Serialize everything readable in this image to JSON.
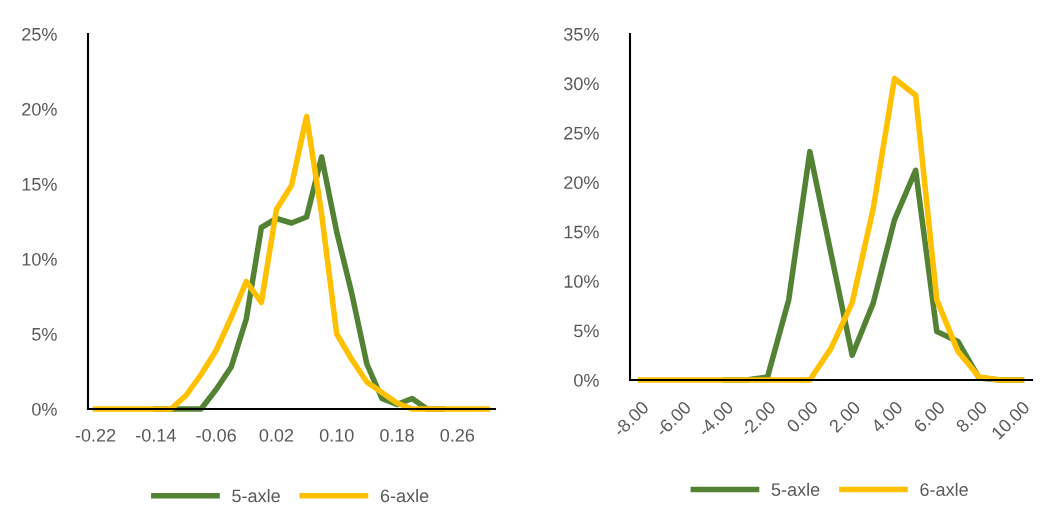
{
  "chart_data": [
    {
      "type": "line",
      "categories": [
        "-0.22",
        null,
        null,
        null,
        "-0.14",
        null,
        null,
        null,
        "-0.06",
        null,
        null,
        null,
        "0.02",
        null,
        null,
        null,
        "0.10",
        null,
        null,
        null,
        "0.18",
        null,
        null,
        null,
        "0.26",
        null,
        null
      ],
      "series": [
        {
          "name": "5-axle",
          "color": "#548235",
          "values": [
            null,
            null,
            null,
            null,
            0,
            0,
            0,
            0,
            1.3,
            2.8,
            6.0,
            12.1,
            12.7,
            12.4,
            12.8,
            16.8,
            11.8,
            7.7,
            3.0,
            0.7,
            0.3,
            0.7,
            0,
            0,
            null,
            null,
            null
          ]
        },
        {
          "name": "6-axle",
          "color": "#ffc000",
          "values": [
            0,
            0,
            0,
            0,
            0,
            0,
            0.9,
            2.3,
            3.9,
            6.1,
            8.5,
            7.1,
            13.3,
            14.9,
            19.5,
            13.0,
            5.0,
            3.3,
            1.8,
            1.1,
            0.4,
            0,
            0,
            0,
            0,
            0,
            0
          ]
        }
      ],
      "ylim": [
        0,
        25
      ],
      "yticks": [
        {
          "value": 0,
          "label": "0%"
        },
        {
          "value": 5,
          "label": "5%"
        },
        {
          "value": 10,
          "label": "10%"
        },
        {
          "value": 15,
          "label": "15%"
        },
        {
          "value": 20,
          "label": "20%"
        },
        {
          "value": 25,
          "label": "25%"
        }
      ],
      "grid": false,
      "legend": "bottom",
      "marker": "none",
      "line_style": "solid"
    },
    {
      "type": "line",
      "categories": [
        "-8.00",
        null,
        "-6.00",
        null,
        "-4.00",
        null,
        "-2.00",
        null,
        "0.00",
        null,
        "2.00",
        null,
        "4.00",
        null,
        "6.00",
        null,
        "8.00",
        null,
        "10.00"
      ],
      "series": [
        {
          "name": "5-axle",
          "color": "#548235",
          "values": [
            null,
            null,
            null,
            null,
            0,
            0,
            0.3,
            8.1,
            23.1,
            12.8,
            2.5,
            7.8,
            16.2,
            21.2,
            4.9,
            3.9,
            0.2,
            0,
            0
          ]
        },
        {
          "name": "6-axle",
          "color": "#ffc000",
          "values": [
            0,
            0,
            0,
            0,
            0,
            0,
            0,
            0,
            0,
            3.2,
            7.8,
            17.4,
            30.5,
            28.8,
            8.1,
            2.9,
            0.3,
            0,
            0
          ]
        }
      ],
      "ylim": [
        0,
        35
      ],
      "yticks": [
        {
          "value": 0,
          "label": "0%"
        },
        {
          "value": 5,
          "label": "5%"
        },
        {
          "value": 10,
          "label": "10%"
        },
        {
          "value": 15,
          "label": "15%"
        },
        {
          "value": 20,
          "label": "20%"
        },
        {
          "value": 25,
          "label": "25%"
        },
        {
          "value": 30,
          "label": "30%"
        },
        {
          "value": 35,
          "label": "35%"
        }
      ],
      "grid": false,
      "legend": "bottom",
      "marker": "none",
      "line_style": "solid"
    }
  ]
}
